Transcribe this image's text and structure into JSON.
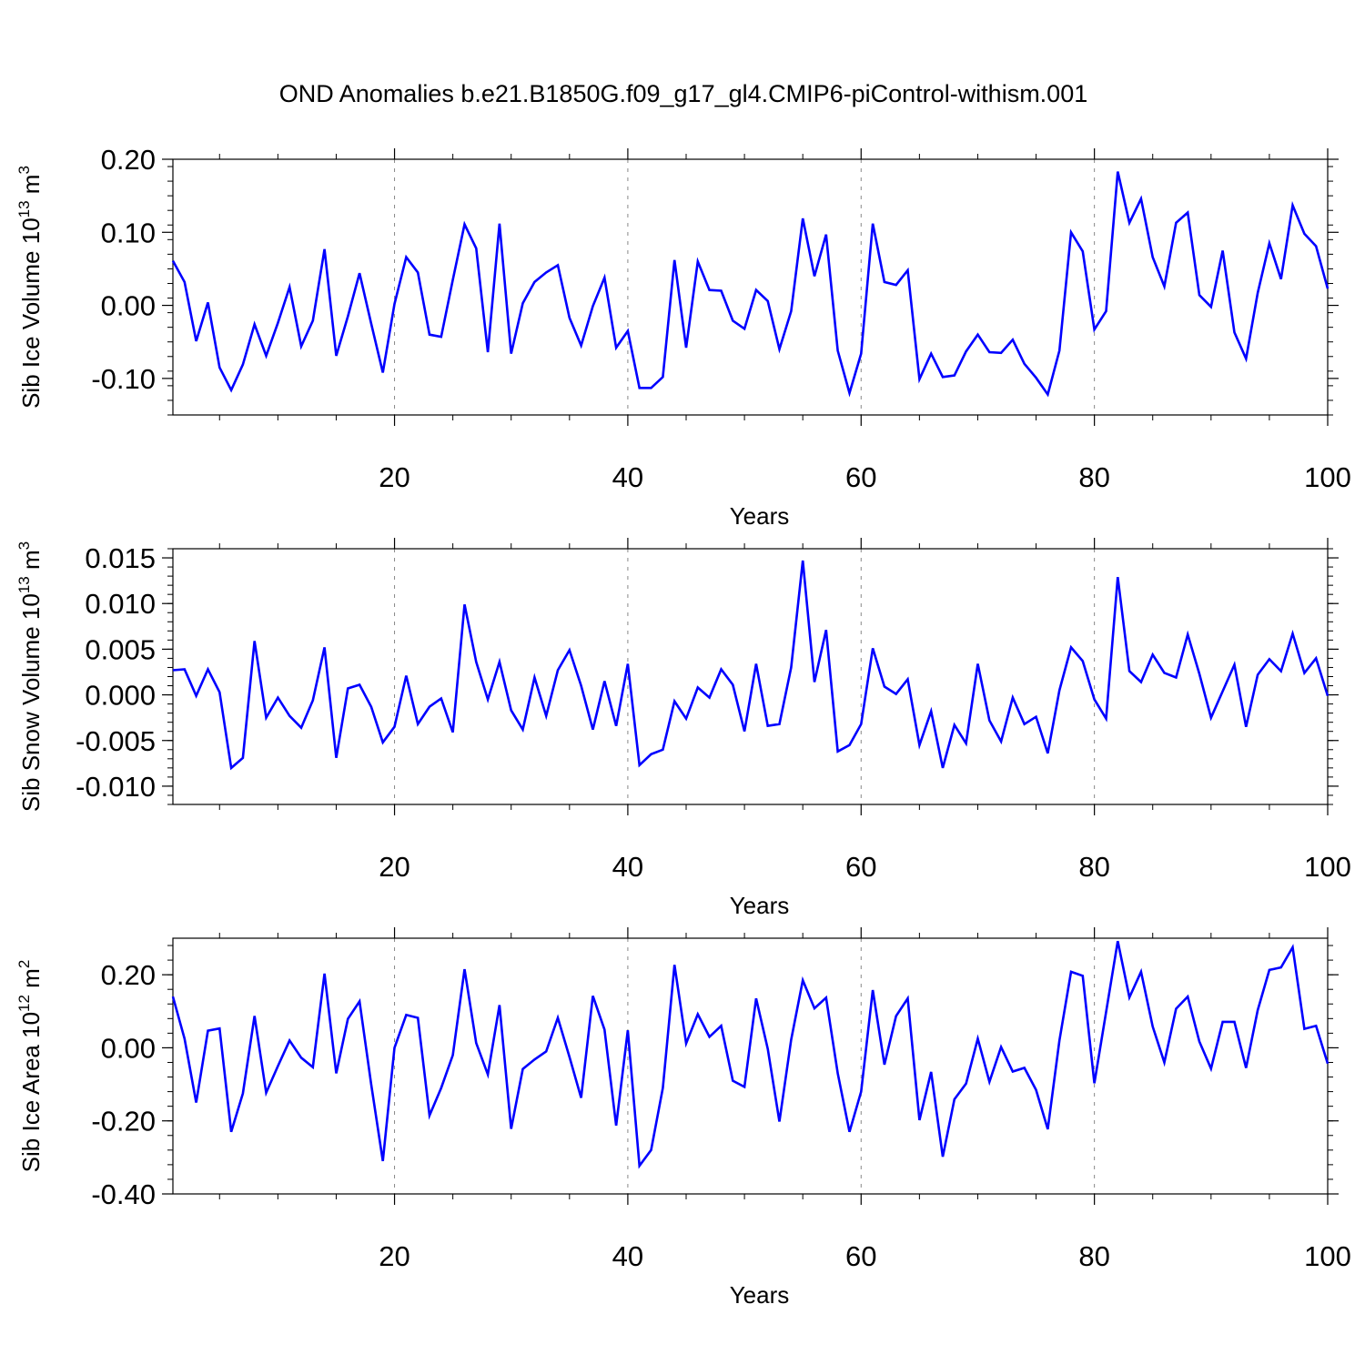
{
  "title": "OND Anomalies b.e21.B1850G.f09_g17_gl4.CMIP6-piControl-withism.001",
  "line_color": "#0000ff",
  "chart_data": [
    {
      "type": "line",
      "ylabel": {
        "text": "Sib Ice Volume 10",
        "exp": "13",
        "unit": " m",
        "unit_exp": "3"
      },
      "xlabel": "Years",
      "xlim": [
        1,
        100
      ],
      "ylim": [
        -0.15,
        0.2
      ],
      "xticks": [
        20,
        40,
        60,
        80,
        100
      ],
      "xtick_labels": [
        "20",
        "40",
        "60",
        "80",
        "100"
      ],
      "yticks": [
        -0.1,
        0.0,
        0.1,
        0.2
      ],
      "ytick_labels": [
        "-0.10",
        "0.00",
        "0.10",
        "0.20"
      ],
      "grid": "dashed vertical lines at 20, 40, 60, 80",
      "series": [
        {
          "x": [
            1,
            2,
            3,
            4,
            5,
            6,
            7,
            8,
            9,
            10,
            11,
            12,
            13,
            14,
            15,
            16,
            17,
            18,
            19,
            20,
            21,
            22,
            23,
            24,
            25,
            26,
            27,
            28,
            29,
            30,
            31,
            32,
            33,
            34,
            35,
            36,
            37,
            38,
            39,
            40,
            41,
            42,
            43,
            44,
            45,
            46,
            47,
            48,
            49,
            50,
            51,
            52,
            53,
            54,
            55,
            56,
            57,
            58,
            59,
            60,
            61,
            62,
            63,
            64,
            65,
            66,
            67,
            68,
            69,
            70,
            71,
            72,
            73,
            74,
            75,
            76,
            77,
            78,
            79,
            80,
            81,
            82,
            83,
            84,
            85,
            86,
            87,
            88,
            89,
            90,
            91,
            92,
            93,
            94,
            95,
            96,
            97,
            98,
            99,
            100
          ],
          "values": [
            0.061,
            0.032,
            -0.049,
            0.004,
            -0.085,
            -0.116,
            -0.081,
            -0.026,
            -0.069,
            -0.024,
            0.025,
            -0.056,
            -0.021,
            0.077,
            -0.069,
            -0.015,
            0.044,
            -0.025,
            -0.092,
            0.002,
            0.066,
            0.045,
            -0.04,
            -0.043,
            0.035,
            0.111,
            0.078,
            -0.064,
            0.112,
            -0.066,
            0.003,
            0.032,
            0.045,
            0.055,
            -0.017,
            -0.055,
            -0.001,
            0.038,
            -0.058,
            -0.035,
            -0.113,
            -0.113,
            -0.098,
            0.062,
            -0.058,
            0.06,
            0.021,
            0.02,
            -0.021,
            -0.032,
            0.021,
            0.006,
            -0.06,
            -0.008,
            0.119,
            0.04,
            0.097,
            -0.062,
            -0.12,
            -0.066,
            0.112,
            0.032,
            0.028,
            0.048,
            -0.101,
            -0.066,
            -0.098,
            -0.096,
            -0.063,
            -0.04,
            -0.064,
            -0.065,
            -0.047,
            -0.08,
            -0.099,
            -0.122,
            -0.062,
            0.1,
            0.074,
            -0.033,
            -0.008,
            0.183,
            0.113,
            0.146,
            0.066,
            0.026,
            0.113,
            0.127,
            0.014,
            -0.002,
            0.075,
            -0.037,
            -0.073,
            0.017,
            0.085,
            0.036,
            0.137,
            0.098,
            0.081,
            0.023
          ]
        }
      ]
    },
    {
      "type": "line",
      "ylabel": {
        "text": "Sib Snow Volume 10",
        "exp": "13",
        "unit": " m",
        "unit_exp": "3"
      },
      "xlabel": "Years",
      "xlim": [
        1,
        100
      ],
      "ylim": [
        -0.012,
        0.016
      ],
      "xticks": [
        20,
        40,
        60,
        80,
        100
      ],
      "xtick_labels": [
        "20",
        "40",
        "60",
        "80",
        "100"
      ],
      "yticks": [
        -0.01,
        -0.005,
        0.0,
        0.005,
        0.01,
        0.015
      ],
      "ytick_labels": [
        "-0.010",
        "-0.005",
        "0.000",
        "0.005",
        "0.010",
        "0.015"
      ],
      "grid": "dashed vertical lines at 20, 40, 60, 80",
      "series": [
        {
          "x": [
            1,
            2,
            3,
            4,
            5,
            6,
            7,
            8,
            9,
            10,
            11,
            12,
            13,
            14,
            15,
            16,
            17,
            18,
            19,
            20,
            21,
            22,
            23,
            24,
            25,
            26,
            27,
            28,
            29,
            30,
            31,
            32,
            33,
            34,
            35,
            36,
            37,
            38,
            39,
            40,
            41,
            42,
            43,
            44,
            45,
            46,
            47,
            48,
            49,
            50,
            51,
            52,
            53,
            54,
            55,
            56,
            57,
            58,
            59,
            60,
            61,
            62,
            63,
            64,
            65,
            66,
            67,
            68,
            69,
            70,
            71,
            72,
            73,
            74,
            75,
            76,
            77,
            78,
            79,
            80,
            81,
            82,
            83,
            84,
            85,
            86,
            87,
            88,
            89,
            90,
            91,
            92,
            93,
            94,
            95,
            96,
            97,
            98,
            99,
            100
          ],
          "values": [
            0.0027,
            0.0028,
            -0.0001,
            0.0028,
            0.0003,
            -0.008,
            -0.0069,
            0.0059,
            -0.0025,
            -0.0003,
            -0.0023,
            -0.0036,
            -0.0006,
            0.0052,
            -0.0069,
            0.0007,
            0.0011,
            -0.0013,
            -0.0052,
            -0.0035,
            0.0021,
            -0.0032,
            -0.0013,
            -0.0004,
            -0.0041,
            0.0099,
            0.0036,
            -0.0005,
            0.0036,
            -0.0017,
            -0.0038,
            0.0019,
            -0.0023,
            0.0027,
            0.0049,
            0.001,
            -0.0038,
            0.0015,
            -0.0034,
            0.0034,
            -0.0077,
            -0.0065,
            -0.006,
            -0.0007,
            -0.0026,
            0.0008,
            -0.0003,
            0.0028,
            0.0011,
            -0.004,
            0.0034,
            -0.0034,
            -0.0032,
            0.003,
            0.0147,
            0.0014,
            0.0071,
            -0.0062,
            -0.0055,
            -0.0032,
            0.0051,
            0.0009,
            0.0001,
            0.0017,
            -0.0055,
            -0.0018,
            -0.008,
            -0.0033,
            -0.0053,
            0.0034,
            -0.0028,
            -0.0051,
            -0.0003,
            -0.0032,
            -0.0024,
            -0.0064,
            0.0005,
            0.0052,
            0.0037,
            -0.0005,
            -0.0026,
            0.0129,
            0.0026,
            0.0014,
            0.0044,
            0.0024,
            0.0019,
            0.0066,
            0.0023,
            -0.0025,
            0.0004,
            0.0033,
            -0.0035,
            0.0022,
            0.0039,
            0.0026,
            0.0067,
            0.0024,
            0.004,
            -0.0001
          ]
        }
      ]
    },
    {
      "type": "line",
      "ylabel": {
        "text": "Sib Ice Area 10",
        "exp": "12",
        "unit": " m",
        "unit_exp": "2"
      },
      "xlabel": "Years",
      "xlim": [
        1,
        100
      ],
      "ylim": [
        -0.4,
        0.3
      ],
      "xticks": [
        20,
        40,
        60,
        80,
        100
      ],
      "xtick_labels": [
        "20",
        "40",
        "60",
        "80",
        "100"
      ],
      "yticks": [
        -0.4,
        -0.2,
        0.0,
        0.2
      ],
      "ytick_labels": [
        "-0.40",
        "-0.20",
        "0.00",
        "0.20"
      ],
      "grid": "dashed vertical lines at 20, 40, 60, 80",
      "series": [
        {
          "x": [
            1,
            2,
            3,
            4,
            5,
            6,
            7,
            8,
            9,
            10,
            11,
            12,
            13,
            14,
            15,
            16,
            17,
            18,
            19,
            20,
            21,
            22,
            23,
            24,
            25,
            26,
            27,
            28,
            29,
            30,
            31,
            32,
            33,
            34,
            35,
            36,
            37,
            38,
            39,
            40,
            41,
            42,
            43,
            44,
            45,
            46,
            47,
            48,
            49,
            50,
            51,
            52,
            53,
            54,
            55,
            56,
            57,
            58,
            59,
            60,
            61,
            62,
            63,
            64,
            65,
            66,
            67,
            68,
            69,
            70,
            71,
            72,
            73,
            74,
            75,
            76,
            77,
            78,
            79,
            80,
            81,
            82,
            83,
            84,
            85,
            86,
            87,
            88,
            89,
            90,
            91,
            92,
            93,
            94,
            95,
            96,
            97,
            98,
            99,
            100
          ],
          "values": [
            0.14,
            0.025,
            -0.15,
            0.047,
            0.053,
            -0.23,
            -0.125,
            0.087,
            -0.123,
            -0.05,
            0.02,
            -0.027,
            -0.053,
            0.203,
            -0.07,
            0.079,
            0.127,
            -0.1,
            -0.31,
            0.0,
            0.09,
            0.082,
            -0.185,
            -0.11,
            -0.02,
            0.215,
            0.013,
            -0.073,
            0.117,
            -0.222,
            -0.058,
            -0.032,
            -0.01,
            0.082,
            -0.025,
            -0.137,
            0.142,
            0.05,
            -0.213,
            0.048,
            -0.323,
            -0.28,
            -0.11,
            0.227,
            0.012,
            0.092,
            0.03,
            0.06,
            -0.09,
            -0.107,
            0.135,
            -0.003,
            -0.202,
            0.022,
            0.185,
            0.108,
            0.137,
            -0.07,
            -0.23,
            -0.12,
            0.158,
            -0.046,
            0.087,
            0.135,
            -0.198,
            -0.066,
            -0.298,
            -0.141,
            -0.098,
            0.025,
            -0.093,
            0.002,
            -0.065,
            -0.055,
            -0.115,
            -0.223,
            0.02,
            0.208,
            0.197,
            -0.097,
            0.098,
            0.292,
            0.138,
            0.208,
            0.058,
            -0.04,
            0.107,
            0.14,
            0.017,
            -0.057,
            0.071,
            0.071,
            -0.055,
            0.103,
            0.213,
            0.22,
            0.275,
            0.052,
            0.06,
            -0.043
          ]
        }
      ]
    }
  ]
}
